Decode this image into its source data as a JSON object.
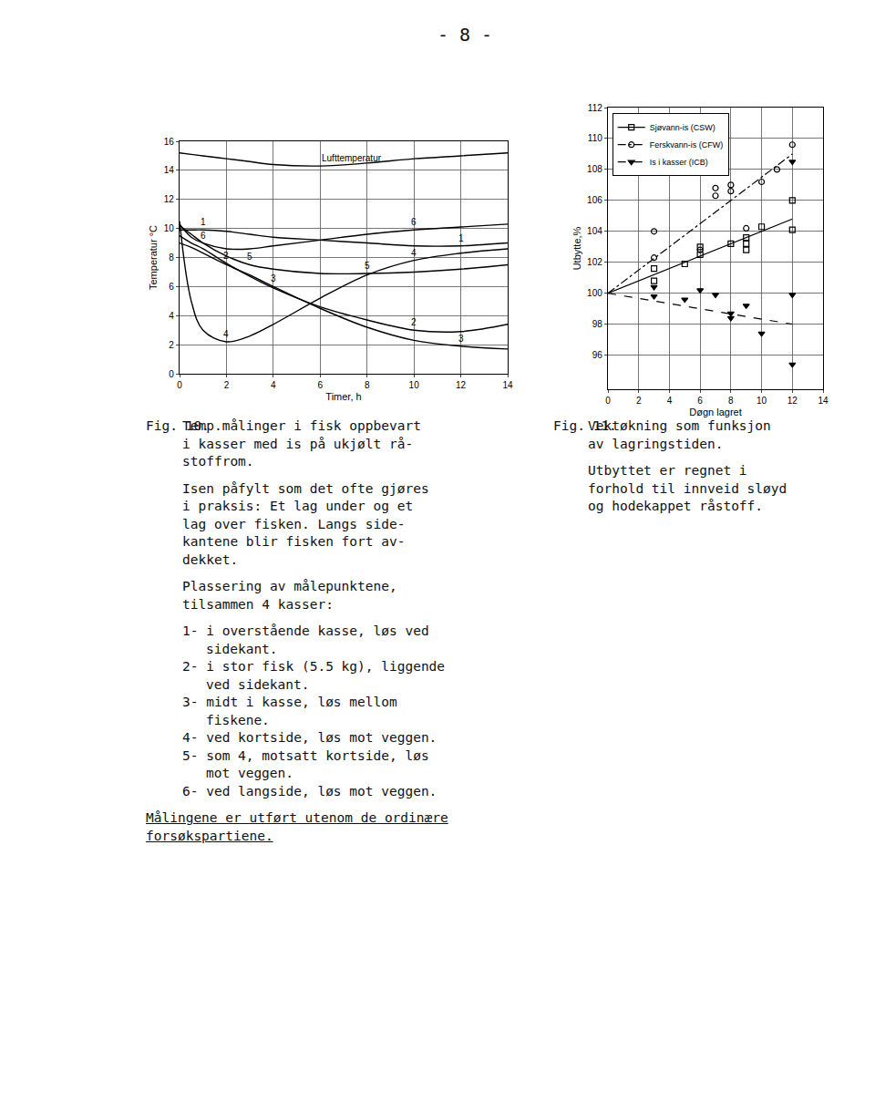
{
  "page_number": "- 8 -",
  "chart_data": [
    {
      "type": "line",
      "x_label": "Timer, h",
      "y_label": "Temperatur °C",
      "x": [
        0,
        0.5,
        1,
        2,
        3,
        4,
        6,
        8,
        10,
        12,
        14
      ],
      "series": [
        {
          "name": "Lufttemperatur",
          "color": "#000000",
          "values": [
            15.2,
            15.1,
            15.0,
            14.8,
            14.6,
            14.4,
            14.3,
            14.5,
            14.8,
            15.0,
            15.2
          ]
        },
        {
          "name": "1",
          "color": "#000000",
          "values": [
            9.9,
            9.9,
            9.9,
            9.8,
            9.6,
            9.4,
            9.2,
            9.0,
            8.8,
            8.8,
            9.0
          ]
        },
        {
          "name": "2",
          "color": "#000000",
          "values": [
            9.5,
            9.0,
            8.6,
            7.6,
            6.7,
            5.9,
            4.6,
            3.7,
            3.0,
            2.9,
            3.4
          ]
        },
        {
          "name": "3",
          "color": "#000000",
          "values": [
            9.0,
            8.7,
            8.3,
            7.5,
            6.8,
            6.0,
            4.5,
            3.2,
            2.3,
            1.9,
            1.7
          ]
        },
        {
          "name": "4",
          "color": "#000000",
          "values": [
            10.5,
            5.0,
            3.0,
            2.2,
            2.6,
            3.4,
            5.2,
            6.8,
            7.8,
            8.3,
            8.6
          ]
        },
        {
          "name": "5",
          "color": "#000000",
          "values": [
            10.2,
            9.6,
            9.0,
            8.1,
            7.5,
            7.2,
            6.9,
            6.9,
            7.0,
            7.2,
            7.5
          ]
        },
        {
          "name": "6",
          "color": "#000000",
          "values": [
            10.3,
            9.4,
            9.0,
            8.6,
            8.6,
            8.8,
            9.2,
            9.6,
            9.9,
            10.1,
            10.3
          ]
        }
      ],
      "xlim": [
        0,
        14
      ],
      "ylim": [
        0,
        16
      ],
      "xticks": [
        0,
        2,
        4,
        6,
        8,
        10,
        12,
        14
      ],
      "yticks": [
        0,
        2,
        4,
        6,
        8,
        10,
        12,
        14,
        16
      ],
      "grid": true,
      "line_style": "solid"
    },
    {
      "type": "scatter",
      "x_label": "Døgn lagret",
      "y_label": "Utbytte,%",
      "series": [
        {
          "name": "Sjøvann-is (CSW)",
          "color": "#000000",
          "marker": "square-open",
          "line_style": "solid",
          "x": [
            3,
            3,
            5,
            6,
            6,
            8,
            9,
            9,
            9,
            10,
            12,
            12
          ],
          "values": [
            101.6,
            100.8,
            101.9,
            102.5,
            103.0,
            103.2,
            103.6,
            103.2,
            102.8,
            104.3,
            104.1,
            106.0
          ],
          "trend": {
            "x": [
              0,
              12
            ],
            "values": [
              100,
              104.8
            ]
          }
        },
        {
          "name": "Ferskvann-is (CFW)",
          "color": "#000000",
          "marker": "circle-open",
          "line_style": "dashdot",
          "x": [
            3,
            3,
            6,
            7,
            7,
            8,
            8,
            9,
            10,
            11,
            12
          ],
          "values": [
            104.0,
            102.3,
            102.8,
            106.8,
            106.3,
            106.6,
            107.0,
            104.2,
            107.2,
            108.0,
            109.6
          ],
          "trend": {
            "x": [
              0,
              12
            ],
            "values": [
              100,
              109
            ]
          }
        },
        {
          "name": "Is i kasser (ICB)",
          "color": "#000000",
          "marker": "triangle-down",
          "line_style": "dash",
          "x": [
            3,
            3,
            5,
            6,
            7,
            8,
            8,
            9,
            10,
            12,
            12,
            12
          ],
          "values": [
            100.4,
            99.8,
            99.6,
            100.2,
            99.9,
            98.4,
            98.7,
            99.2,
            97.4,
            99.9,
            95.4,
            108.5
          ],
          "trend": {
            "x": [
              0,
              12
            ],
            "values": [
              100,
              98
            ]
          }
        }
      ],
      "xlim": [
        0,
        14
      ],
      "ylim": [
        93.8,
        112
      ],
      "xticks": [
        0,
        2,
        4,
        6,
        8,
        10,
        12,
        14
      ],
      "yticks": [
        96,
        98,
        100,
        102,
        104,
        106,
        108,
        110,
        112
      ],
      "grid": true,
      "legend": "upper left"
    }
  ],
  "captions": [
    {
      "label": "Fig. 10.",
      "paragraphs": [
        [
          "Temp.målinger i fisk oppbevart",
          "i kasser med is på ukjølt rå-",
          "stoffrom."
        ],
        [
          "Isen påfylt som det ofte gjøres",
          "i praksis: Et lag under og et",
          "lag over fisken. Langs side-",
          "kantene blir fisken fort av-",
          "dekket."
        ],
        [
          "Plassering av målepunktene,",
          "tilsammen 4 kasser:"
        ]
      ],
      "list": [
        [
          "1- i overstående kasse, løs ved",
          "sidekant."
        ],
        [
          "2- i stor fisk (5.5 kg), liggende",
          "ved sidekant."
        ],
        [
          "3- midt i kasse, løs mellom",
          "fiskene."
        ],
        [
          "4- ved kortside, løs mot veggen."
        ],
        [
          "5- som 4, motsatt kortside, løs",
          "mot veggen."
        ],
        [
          "6- ved langside, løs mot veggen."
        ]
      ],
      "note": [
        "Målingene er utført utenom de ordinære",
        "forsøkspartiene."
      ]
    },
    {
      "label": "Fig. 11.",
      "paragraphs": [
        [
          "Vektøkning som funksjon",
          "av lagringstiden."
        ],
        [
          "Utbyttet er regnet i",
          "forhold til innveid sløyd",
          "og hodekappet råstoff."
        ]
      ]
    }
  ]
}
